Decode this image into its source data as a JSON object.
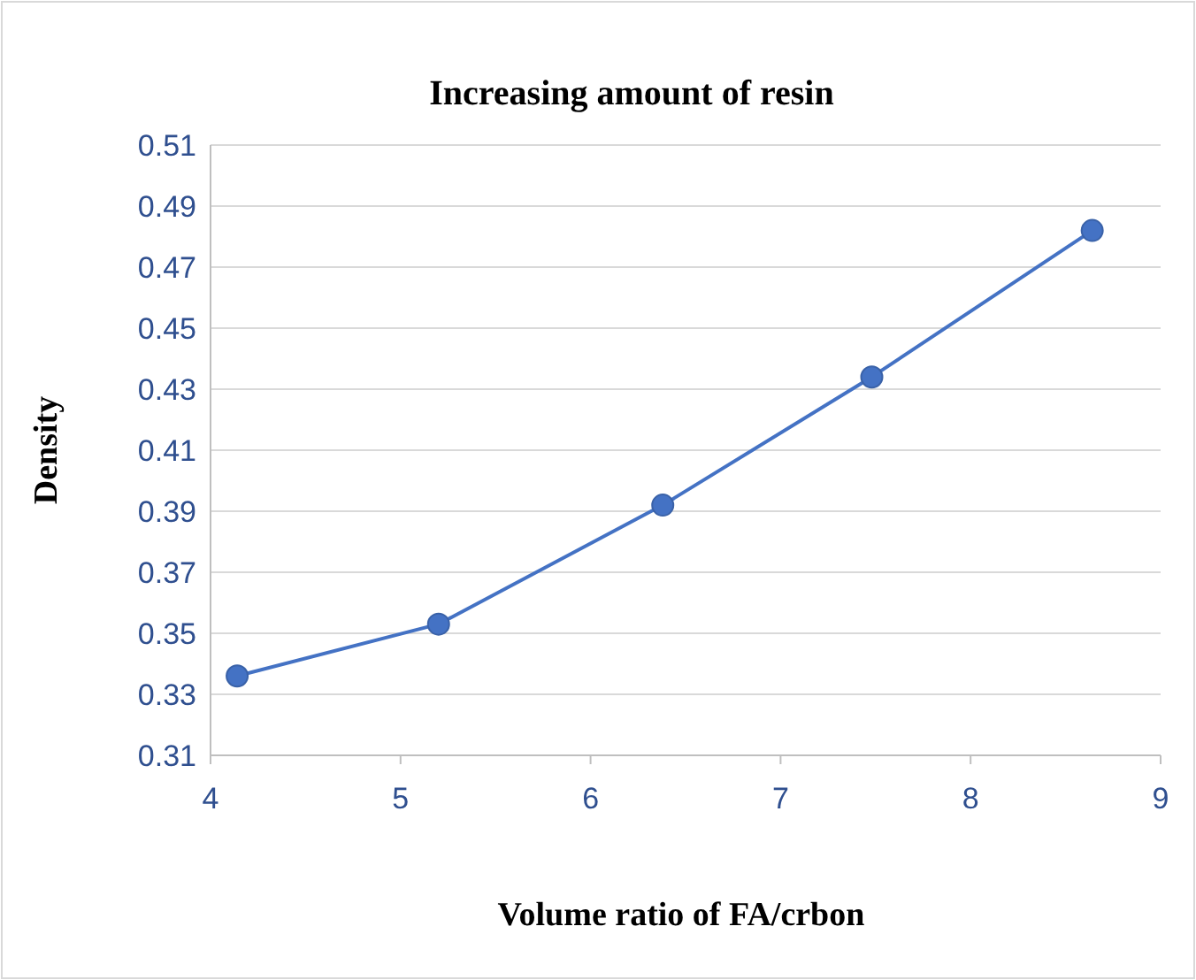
{
  "chart_data": {
    "type": "line",
    "title": "Increasing amount of resin",
    "xlabel": "Volume ratio of FA/crbon",
    "ylabel": "Density",
    "x": [
      4.14,
      5.2,
      6.38,
      7.48,
      8.64
    ],
    "series": [
      {
        "color": "#4472c4",
        "values": [
          0.336,
          0.353,
          0.392,
          0.434,
          0.482
        ]
      }
    ],
    "xlim": [
      4,
      9
    ],
    "xticks": [
      4,
      5,
      6,
      7,
      8,
      9
    ],
    "ylim": [
      0.31,
      0.51
    ],
    "yticks": [
      0.31,
      0.33,
      0.35,
      0.37,
      0.39,
      0.41,
      0.43,
      0.45,
      0.47,
      0.49,
      0.51
    ],
    "grid": "y",
    "marker": "circle",
    "line_style": "solid"
  }
}
